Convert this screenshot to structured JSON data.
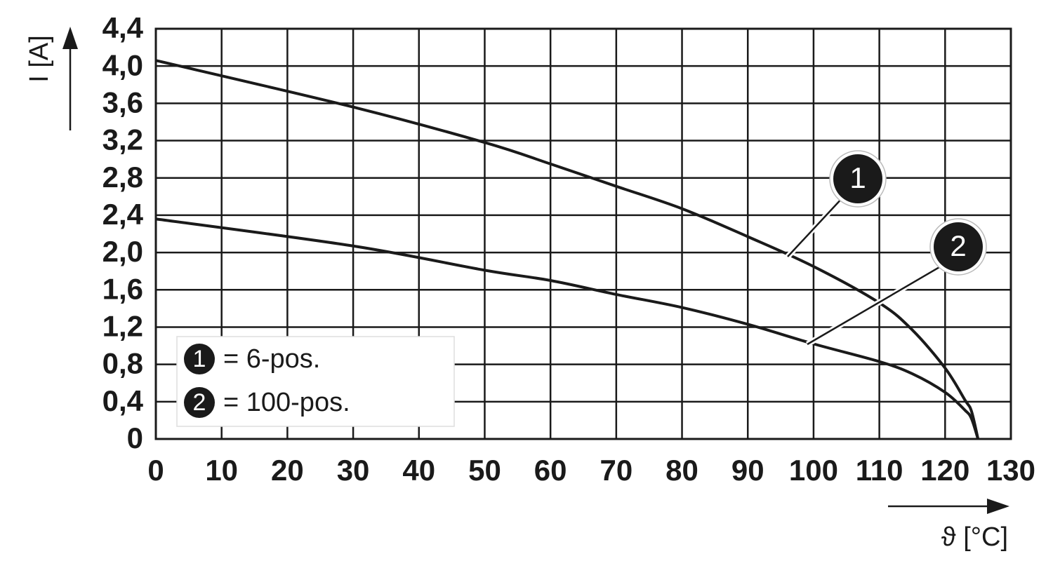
{
  "chart_data": {
    "type": "line",
    "y_label": "I [A]",
    "x_label": "ϑ [°C]",
    "xlim": [
      0,
      130
    ],
    "ylim": [
      0,
      4.4
    ],
    "xticks": [
      0,
      10,
      20,
      30,
      40,
      50,
      60,
      70,
      80,
      90,
      100,
      110,
      120,
      130
    ],
    "yticks": [
      0,
      {
        "value": 0.4,
        "label": "0,4"
      },
      {
        "value": 0.8,
        "label": "0,8"
      },
      {
        "value": 1.2,
        "label": "1,2"
      },
      {
        "value": 1.6,
        "label": "1,6"
      },
      {
        "value": 2.0,
        "label": "2,0"
      },
      {
        "value": 2.4,
        "label": "2,4"
      },
      {
        "value": 2.8,
        "label": "2,8"
      },
      {
        "value": 3.2,
        "label": "3,2"
      },
      {
        "value": 3.6,
        "label": "3,6"
      },
      {
        "value": 4.0,
        "label": "4,0"
      },
      {
        "value": 4.4,
        "label": "4,4"
      }
    ],
    "grid": true,
    "legend": "lower left",
    "series": [
      {
        "name": "= 6-pos.",
        "marker_label": "1",
        "color": "#1a1a1a",
        "x": [
          0,
          30,
          50,
          60,
          70,
          80,
          90,
          100,
          110,
          115,
          120,
          123,
          124,
          125
        ],
        "values": [
          4.06,
          3.56,
          3.18,
          2.95,
          2.71,
          2.47,
          2.17,
          1.85,
          1.46,
          1.17,
          0.76,
          0.42,
          0.3,
          0
        ]
      },
      {
        "name": "= 100-pos.",
        "marker_label": "2",
        "color": "#1a1a1a",
        "x": [
          0,
          30,
          50,
          60,
          70,
          80,
          90,
          100,
          110,
          115,
          120,
          123,
          124,
          125
        ],
        "values": [
          2.36,
          2.07,
          1.81,
          1.7,
          1.55,
          1.41,
          1.23,
          1.02,
          0.83,
          0.7,
          0.5,
          0.31,
          0.22,
          0
        ]
      }
    ]
  }
}
